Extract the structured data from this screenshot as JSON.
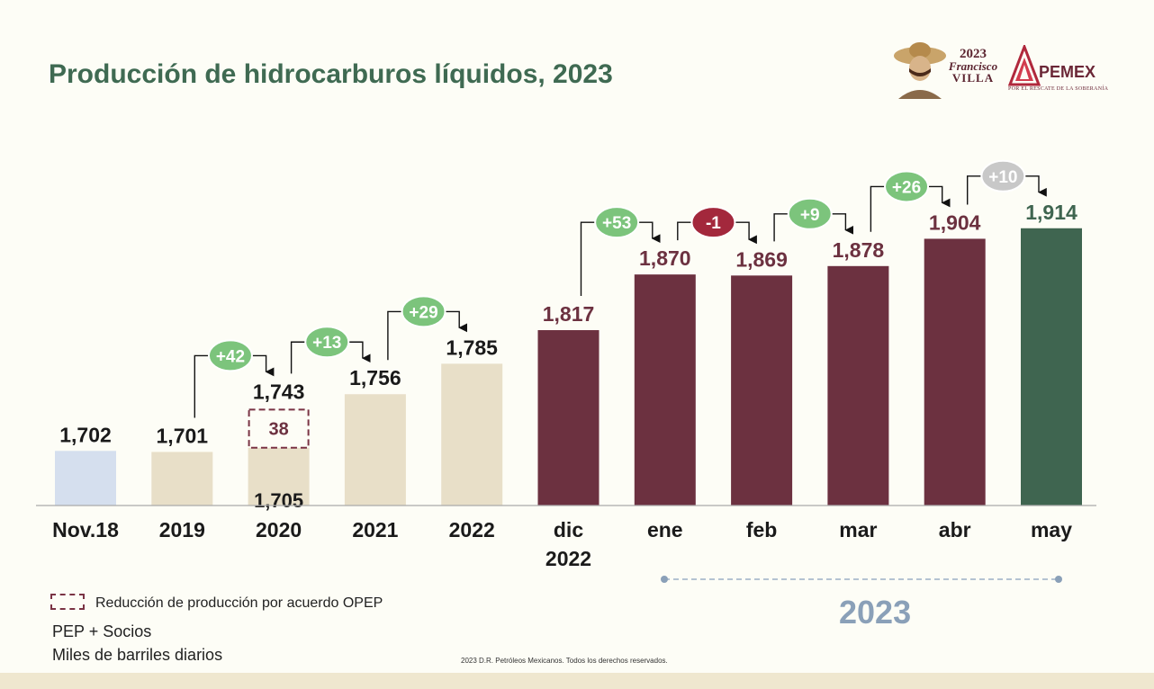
{
  "title": "Producción de hidrocarburos líquidos, 2023",
  "logos": {
    "villa_year": "2023",
    "villa_name_1": "Francisco",
    "villa_name_2": "VILLA",
    "pemex": "PEMEX",
    "pemex_tagline": "POR EL RESCATE DE LA SOBERANÍA"
  },
  "chart_data": {
    "type": "bar",
    "categories": [
      "Nov.18",
      "2019",
      "2020",
      "2021",
      "2022",
      "dic 2022",
      "ene",
      "feb",
      "mar",
      "abr",
      "may"
    ],
    "values": [
      1702,
      1701,
      1743,
      1756,
      1785,
      1817,
      1870,
      1869,
      1878,
      1904,
      1914
    ],
    "value_labels": [
      "1,702",
      "1,701",
      "1,743",
      "1,756",
      "1,785",
      "1,817",
      "1,870",
      "1,869",
      "1,878",
      "1,904",
      "1,914"
    ],
    "stack_2020": {
      "base_value": 1705,
      "base_label": "1,705",
      "opec_reduction_value": 38,
      "opec_reduction_label": "38"
    },
    "changes": [
      {
        "from": "2019",
        "to": "2020",
        "label": "+42",
        "kind": "up"
      },
      {
        "from": "2020",
        "to": "2021",
        "label": "+13",
        "kind": "up"
      },
      {
        "from": "2021",
        "to": "2022",
        "label": "+29",
        "kind": "up"
      },
      {
        "from": "dic 2022",
        "to": "ene",
        "label": "+53",
        "kind": "up"
      },
      {
        "from": "ene",
        "to": "feb",
        "label": "-1",
        "kind": "down"
      },
      {
        "from": "feb",
        "to": "mar",
        "label": "+9",
        "kind": "up"
      },
      {
        "from": "mar",
        "to": "abr",
        "label": "+26",
        "kind": "up"
      },
      {
        "from": "abr",
        "to": "may",
        "label": "+10",
        "kind": "pending"
      }
    ],
    "colors": {
      "nov18": "#d5dfee",
      "annual": "#e8dfc8",
      "monthly": "#6c3140",
      "latest": "#3f6550",
      "up_badge": "#7cc47c",
      "down_badge": "#a3283c",
      "pending_badge": "#c8c8c8",
      "value_text_dark": "#1a1a1a",
      "value_text_maroon": "#6c3140",
      "value_text_green": "#3f6550"
    },
    "ylim": [
      1650,
      1930
    ],
    "grid": false
  },
  "legend": {
    "opec_label": "Reducción de producción por acuerdo OPEP"
  },
  "notes": {
    "line1": "PEP + Socios",
    "line2": "Miles de barriles diarios"
  },
  "year_bracket_label": "2023",
  "copyright": "2023 D.R. Petróleos Mexicanos. Todos los derechos reservados."
}
